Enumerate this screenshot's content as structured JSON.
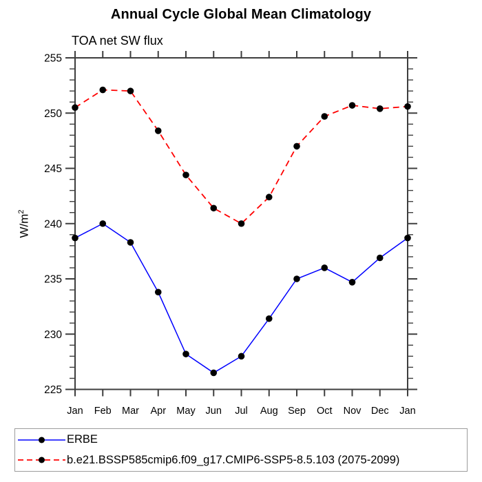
{
  "title": "Annual Cycle Global Mean Climatology",
  "subtitle": "TOA net SW flux",
  "ylabel_base": "W/m",
  "ylabel_exponent": "2",
  "axis_color": "#3d3d3d",
  "legend": {
    "items": [
      {
        "label": "ERBE",
        "color": "#0000ff",
        "style": "solid",
        "marker_color": "#000000"
      },
      {
        "label": "b.e21.BSSP585cmip6.f09_g17.CMIP6-SSP5-8.5.103 (2075-2099)",
        "color": "#ff0000",
        "style": "dashed",
        "marker_color": "#000000"
      }
    ]
  },
  "chart_data": {
    "type": "line",
    "title": "Annual Cycle Global Mean Climatology",
    "subtitle": "TOA net SW flux",
    "ylabel": "W/m²",
    "xlabel": "",
    "categories": [
      "Jan",
      "Feb",
      "Mar",
      "Apr",
      "May",
      "Jun",
      "Jul",
      "Aug",
      "Sep",
      "Oct",
      "Nov",
      "Dec",
      "Jan"
    ],
    "series": [
      {
        "name": "ERBE",
        "color": "#0000ff",
        "dash": "solid",
        "marker": "circle",
        "marker_color": "#000000",
        "values": [
          238.7,
          240.0,
          238.3,
          233.8,
          228.2,
          226.5,
          228.0,
          231.4,
          235.0,
          236.0,
          234.7,
          236.9,
          238.7
        ]
      },
      {
        "name": "b.e21.BSSP585cmip6.f09_g17.CMIP6-SSP5-8.5.103 (2075-2099)",
        "color": "#ff0000",
        "dash": "dashed",
        "marker": "circle",
        "marker_color": "#000000",
        "values": [
          250.5,
          252.1,
          252.0,
          248.4,
          244.4,
          241.4,
          240.0,
          242.4,
          247.0,
          249.7,
          250.7,
          250.4,
          250.6
        ]
      }
    ],
    "ylim": [
      225,
      255
    ],
    "ytick_major": 5,
    "ytick_minor": 1,
    "grid": false,
    "legend_position": "bottom"
  }
}
